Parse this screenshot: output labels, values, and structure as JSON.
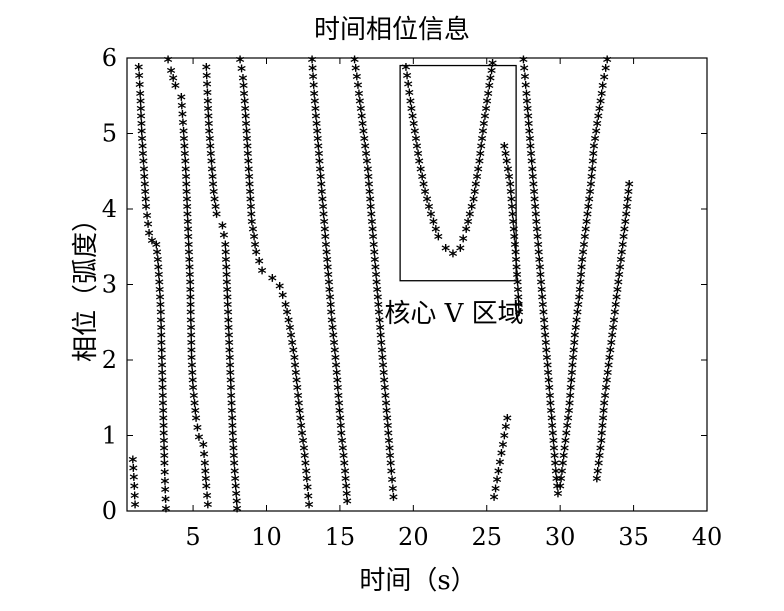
{
  "chart_data": {
    "type": "scatter",
    "title": "时间相位信息",
    "xlabel": "时间（s）",
    "ylabel": "相位（弧度）",
    "xlim": [
      0.5,
      40
    ],
    "ylim": [
      0,
      6
    ],
    "xticks": [
      5,
      10,
      15,
      20,
      25,
      30,
      35,
      40
    ],
    "yticks": [
      0,
      1,
      2,
      3,
      4,
      5,
      6
    ],
    "marker": "*",
    "annotation": {
      "text": "核心 V 区域",
      "region": {
        "x": [
          19.1,
          27
        ],
        "y": [
          3.05,
          5.9
        ]
      }
    },
    "strokes": [
      {
        "pts": [
          [
            0.9,
            0.65
          ],
          [
            1.0,
            0.3
          ],
          [
            1.05,
            0.05
          ]
        ]
      },
      {
        "pts": [
          [
            1.3,
            5.85
          ],
          [
            1.4,
            5.5
          ],
          [
            1.5,
            5.0
          ],
          [
            1.65,
            4.5
          ],
          [
            1.8,
            4.0
          ],
          [
            2.0,
            3.65
          ],
          [
            2.2,
            3.55
          ],
          [
            2.5,
            3.5
          ],
          [
            2.6,
            3.3
          ],
          [
            2.7,
            3.0
          ],
          [
            2.8,
            2.6
          ],
          [
            2.85,
            2.2
          ],
          [
            2.9,
            1.8
          ],
          [
            2.95,
            1.4
          ],
          [
            3.0,
            1.0
          ],
          [
            3.05,
            0.6
          ],
          [
            3.1,
            0.25
          ],
          [
            3.15,
            0.0
          ]
        ]
      },
      {
        "pts": [
          [
            3.3,
            5.95
          ],
          [
            3.5,
            5.8
          ],
          [
            3.8,
            5.6
          ],
          [
            4.2,
            5.45
          ],
          [
            4.35,
            5.0
          ],
          [
            4.5,
            4.5
          ],
          [
            4.6,
            4.0
          ],
          [
            4.7,
            3.5
          ],
          [
            4.8,
            3.0
          ],
          [
            4.85,
            2.5
          ],
          [
            4.9,
            2.0
          ],
          [
            5.0,
            1.6
          ],
          [
            5.2,
            1.2
          ],
          [
            5.4,
            0.95
          ],
          [
            5.7,
            0.85
          ],
          [
            5.8,
            0.6
          ],
          [
            5.9,
            0.3
          ],
          [
            6.0,
            0.05
          ]
        ]
      },
      {
        "pts": [
          [
            5.9,
            5.85
          ],
          [
            6.0,
            5.4
          ],
          [
            6.1,
            5.0
          ],
          [
            6.25,
            4.6
          ],
          [
            6.4,
            4.2
          ],
          [
            6.6,
            3.9
          ],
          [
            7.0,
            3.75
          ],
          [
            7.2,
            3.5
          ],
          [
            7.3,
            3.0
          ],
          [
            7.4,
            2.5
          ],
          [
            7.5,
            2.0
          ],
          [
            7.6,
            1.5
          ],
          [
            7.7,
            1.0
          ],
          [
            7.8,
            0.6
          ],
          [
            7.9,
            0.3
          ],
          [
            8.0,
            0.0
          ]
        ]
      },
      {
        "pts": [
          [
            8.2,
            5.95
          ],
          [
            8.4,
            5.7
          ],
          [
            8.55,
            5.3
          ],
          [
            8.7,
            4.8
          ],
          [
            8.85,
            4.3
          ],
          [
            9.0,
            3.8
          ],
          [
            9.3,
            3.4
          ],
          [
            9.7,
            3.15
          ],
          [
            10.4,
            3.05
          ],
          [
            10.9,
            2.95
          ],
          [
            11.3,
            2.7
          ],
          [
            11.6,
            2.4
          ],
          [
            11.9,
            2.0
          ],
          [
            12.1,
            1.6
          ],
          [
            12.3,
            1.2
          ],
          [
            12.55,
            0.8
          ],
          [
            12.75,
            0.4
          ],
          [
            12.9,
            0.05
          ]
        ]
      },
      {
        "pts": [
          [
            13.1,
            5.95
          ],
          [
            13.25,
            5.5
          ],
          [
            13.45,
            5.0
          ],
          [
            13.65,
            4.5
          ],
          [
            13.85,
            4.0
          ],
          [
            14.05,
            3.5
          ],
          [
            14.25,
            3.0
          ],
          [
            14.45,
            2.5
          ],
          [
            14.7,
            2.0
          ],
          [
            14.9,
            1.5
          ],
          [
            15.1,
            1.0
          ],
          [
            15.35,
            0.5
          ],
          [
            15.5,
            0.1
          ]
        ]
      },
      {
        "pts": [
          [
            16.0,
            5.95
          ],
          [
            16.3,
            5.5
          ],
          [
            16.6,
            5.0
          ],
          [
            16.9,
            4.5
          ],
          [
            17.1,
            4.0
          ],
          [
            17.3,
            3.5
          ],
          [
            17.5,
            3.0
          ],
          [
            17.7,
            2.5
          ],
          [
            17.9,
            2.0
          ],
          [
            18.1,
            1.5
          ],
          [
            18.3,
            1.0
          ],
          [
            18.5,
            0.5
          ],
          [
            18.65,
            0.15
          ]
        ]
      },
      {
        "pts": [
          [
            19.5,
            5.85
          ],
          [
            19.8,
            5.4
          ],
          [
            20.1,
            5.0
          ],
          [
            20.4,
            4.6
          ],
          [
            20.8,
            4.2
          ],
          [
            21.2,
            3.9
          ],
          [
            21.7,
            3.6
          ],
          [
            22.2,
            3.45
          ],
          [
            22.7,
            3.38
          ],
          [
            23.2,
            3.45
          ],
          [
            23.6,
            3.7
          ],
          [
            24.1,
            4.1
          ],
          [
            24.5,
            4.6
          ],
          [
            24.8,
            5.1
          ],
          [
            25.1,
            5.5
          ],
          [
            25.4,
            5.9
          ]
        ]
      },
      {
        "pts": [
          [
            26.2,
            4.8
          ],
          [
            26.6,
            4.3
          ],
          [
            26.8,
            3.8
          ],
          [
            27.0,
            3.3
          ],
          [
            27.1,
            3.0
          ],
          [
            27.2,
            2.6
          ]
        ]
      },
      {
        "pts": [
          [
            25.5,
            0.15
          ],
          [
            25.8,
            0.5
          ],
          [
            26.1,
            0.85
          ],
          [
            26.4,
            1.2
          ]
        ]
      },
      {
        "pts": [
          [
            27.5,
            5.95
          ],
          [
            27.7,
            5.5
          ],
          [
            27.9,
            5.0
          ],
          [
            28.1,
            4.5
          ],
          [
            28.3,
            4.0
          ],
          [
            28.5,
            3.5
          ],
          [
            28.7,
            3.0
          ],
          [
            28.9,
            2.5
          ],
          [
            29.1,
            2.0
          ],
          [
            29.3,
            1.5
          ],
          [
            29.5,
            1.0
          ],
          [
            29.7,
            0.5
          ],
          [
            29.85,
            0.2
          ]
        ]
      },
      {
        "pts": [
          [
            30.0,
            0.3
          ],
          [
            30.3,
            0.8
          ],
          [
            30.6,
            1.3
          ],
          [
            30.8,
            1.8
          ],
          [
            31.0,
            2.3
          ],
          [
            31.3,
            2.8
          ],
          [
            31.5,
            3.3
          ],
          [
            31.8,
            3.8
          ],
          [
            32.1,
            4.3
          ],
          [
            32.3,
            4.8
          ],
          [
            32.6,
            5.2
          ],
          [
            32.9,
            5.6
          ],
          [
            33.2,
            5.95
          ]
        ]
      },
      {
        "pts": [
          [
            32.5,
            0.4
          ],
          [
            32.8,
            0.9
          ],
          [
            33.0,
            1.4
          ],
          [
            33.3,
            1.9
          ],
          [
            33.6,
            2.4
          ],
          [
            33.9,
            2.9
          ],
          [
            34.2,
            3.4
          ],
          [
            34.5,
            3.9
          ],
          [
            34.7,
            4.3
          ]
        ]
      }
    ]
  }
}
